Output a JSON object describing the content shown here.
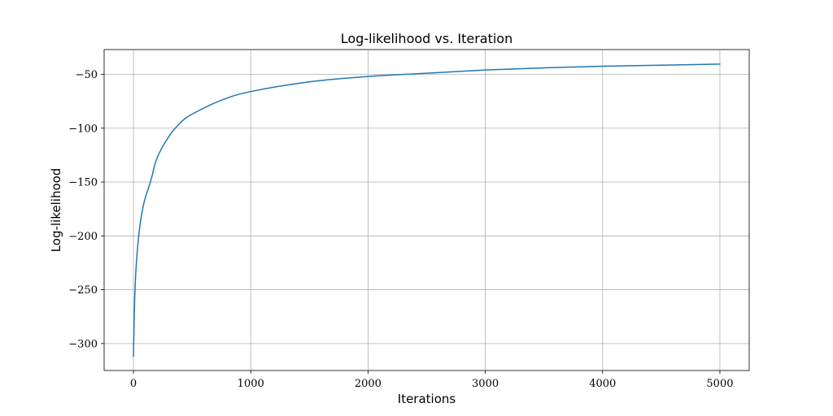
{
  "chart_data": {
    "type": "line",
    "title": "Log-likelihood vs. Iteration",
    "xlabel": "Iterations",
    "ylabel": "Log-likelihood",
    "xlim": [
      -250,
      5250
    ],
    "ylim": [
      -325,
      -27
    ],
    "x_ticks": [
      0,
      1000,
      2000,
      3000,
      4000,
      5000
    ],
    "x_tick_labels": [
      "0",
      "1000",
      "2000",
      "3000",
      "4000",
      "5000"
    ],
    "y_ticks": [
      -300,
      -250,
      -200,
      -150,
      -100,
      -50
    ],
    "y_tick_labels": [
      "−300",
      "−250",
      "−200",
      "−150",
      "−100",
      "−50"
    ],
    "grid": true,
    "series": [
      {
        "color": "#1f77b4",
        "x": [
          0,
          10,
          25,
          50,
          75,
          100,
          150,
          200,
          300,
          400,
          500,
          750,
          1000,
          1500,
          2000,
          2500,
          3000,
          3500,
          4000,
          4500,
          5000
        ],
        "y": [
          -312,
          -260,
          -225,
          -195,
          -177,
          -165,
          -148,
          -128,
          -108,
          -95,
          -87,
          -74,
          -66,
          -57,
          -52,
          -49,
          -46,
          -44,
          -42.5,
          -41.5,
          -40.5
        ]
      }
    ]
  }
}
